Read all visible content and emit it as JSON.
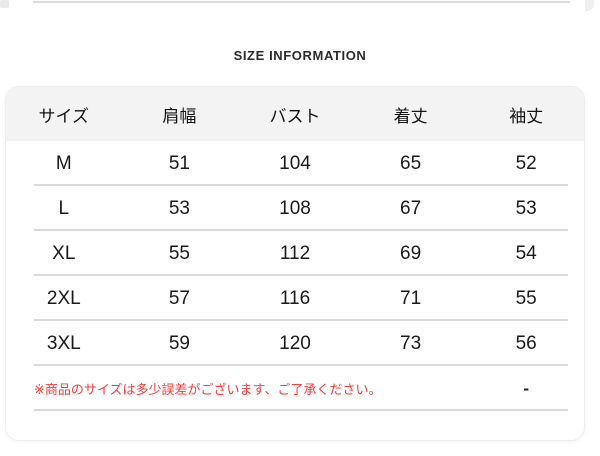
{
  "section": {
    "title": "SIZE INFORMATION"
  },
  "table": {
    "headers": [
      "サイズ",
      "肩幅",
      "バスト",
      "着丈",
      "袖丈"
    ],
    "rows": [
      {
        "size": "M",
        "values": [
          "51",
          "104",
          "65",
          "52"
        ]
      },
      {
        "size": "L",
        "values": [
          "53",
          "108",
          "67",
          "53"
        ]
      },
      {
        "size": "XL",
        "values": [
          "55",
          "112",
          "69",
          "54"
        ]
      },
      {
        "size": "2XL",
        "values": [
          "57",
          "116",
          "71",
          "55"
        ]
      },
      {
        "size": "3XL",
        "values": [
          "59",
          "120",
          "73",
          "56"
        ]
      }
    ],
    "note": "※商品のサイズは多少誤差がございます、ご了承ください。",
    "note_last_cell": "-"
  },
  "colors": {
    "header_bg": "#f3f3f3",
    "divider": "#dadada",
    "note_red": "#f83a3a",
    "text": "#1a1a1a"
  }
}
